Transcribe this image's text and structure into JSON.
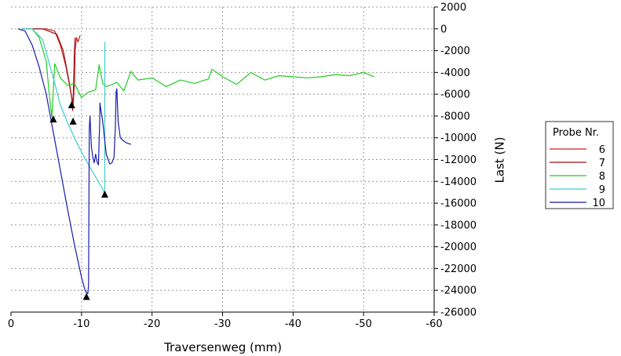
{
  "chart_data": {
    "type": "line",
    "xlabel": "Traversenweg (mm)",
    "ylabel": "Last (N)",
    "xlim": [
      0,
      -60
    ],
    "ylim": [
      -26000,
      2000
    ],
    "xticks": [
      0,
      -10,
      -20,
      -30,
      -40,
      -50,
      -60
    ],
    "yticks": [
      2000,
      0,
      -2000,
      -4000,
      -6000,
      -8000,
      -10000,
      -12000,
      -14000,
      -16000,
      -18000,
      -20000,
      -22000,
      -24000,
      -26000
    ],
    "xtick_labels": [
      "0",
      "-10",
      "-20",
      "-30",
      "-40",
      "-50",
      "-60"
    ],
    "ytick_labels": [
      "2000",
      "0",
      "-2000",
      "-4000",
      "-6000",
      "-8000",
      "-10000",
      "-12000",
      "-14000",
      "-16000",
      "-18000",
      "-20000",
      "-22000",
      "-24000",
      "-26000"
    ],
    "grid": true,
    "y_axis_side": "right",
    "legend": {
      "title": "Probe Nr.",
      "position": "right"
    },
    "series": [
      {
        "name": "6",
        "color": "#cc2020",
        "x": [
          -1.5,
          -3,
          -5,
          -6.2,
          -7,
          -7.8,
          -8.4,
          -8.8,
          -9.0,
          -9.1,
          -9.3,
          -9.5,
          -9.8
        ],
        "y": [
          0,
          0,
          0,
          -200,
          -1500,
          -3500,
          -5500,
          -7000,
          -5000,
          -2000,
          -800,
          -1200,
          -600
        ]
      },
      {
        "name": "7",
        "color": "#991010",
        "x": [
          -1.5,
          -4.5,
          -6.5,
          -7.4,
          -8.0,
          -8.4,
          -8.6,
          -8.75,
          -8.9,
          -9.0,
          -9.1
        ],
        "y": [
          0,
          0,
          -500,
          -2000,
          -4000,
          -5500,
          -6300,
          -7500,
          -4500,
          -2000,
          -800
        ]
      },
      {
        "name": "8",
        "color": "#22cc22",
        "x": [
          -1.5,
          -3,
          -4.0,
          -5.0,
          -5.5,
          -5.8,
          -6.2,
          -7,
          -8,
          -9,
          -10,
          -11,
          -12,
          -12.5,
          -13,
          -13.5,
          -14,
          -15,
          -16,
          -17,
          -18,
          -20,
          -22,
          -24,
          -26,
          -28,
          -28.5,
          -30,
          -32,
          -34,
          -36,
          -38,
          -40,
          -42,
          -44,
          -46,
          -48,
          -50,
          -51.5
        ],
        "y": [
          0,
          0,
          -800,
          -3000,
          -6500,
          -8100,
          -3200,
          -4500,
          -5200,
          -5000,
          -6300,
          -5800,
          -5600,
          -3300,
          -5000,
          -5300,
          -5200,
          -4900,
          -5700,
          -3900,
          -4700,
          -4500,
          -5300,
          -4700,
          -5000,
          -4600,
          -3700,
          -4400,
          -5100,
          -4000,
          -4700,
          -4300,
          -4400,
          -4500,
          -4400,
          -4200,
          -4300,
          -4000,
          -4400
        ]
      },
      {
        "name": "9",
        "color": "#40cccc",
        "x": [
          -1.5,
          -3,
          -4.5,
          -6,
          -7,
          -8,
          -9,
          -10,
          -11,
          -12,
          -13.0,
          -13.3,
          -13.3
        ],
        "y": [
          0,
          0,
          -1000,
          -4500,
          -7000,
          -8600,
          -10000,
          -11300,
          -12500,
          -13600,
          -14700,
          -15200,
          -1200
        ]
      },
      {
        "name": "10",
        "color": "#1a1aaa",
        "x": [
          -1.0,
          -2.0,
          -3.0,
          -4.0,
          -5.0,
          -6.0,
          -7.0,
          -8.0,
          -9.0,
          -10.0,
          -10.5,
          -10.7,
          -10.9,
          -11.0,
          -11.1,
          -11.2,
          -11.4,
          -11.6,
          -11.8,
          -12.0,
          -12.2,
          -12.4,
          -12.6,
          -12.6,
          -13.0,
          -13.5,
          -14.0,
          -14.3,
          -14.6,
          -14.8,
          -14.9,
          -15.0,
          -15.2,
          -15.5,
          -16.0,
          -16.5,
          -17.0
        ],
        "y": [
          0,
          -200,
          -1500,
          -3500,
          -6000,
          -9500,
          -13000,
          -16500,
          -19800,
          -22800,
          -24000,
          -24200,
          -24300,
          -23500,
          -9200,
          -8000,
          -10800,
          -11800,
          -12300,
          -11500,
          -12200,
          -12500,
          -8000,
          -6800,
          -8500,
          -11500,
          -12400,
          -12300,
          -11800,
          -9000,
          -5800,
          -5500,
          -8500,
          -10000,
          -10300,
          -10500,
          -10600
        ]
      }
    ],
    "failure_markers": [
      {
        "x": -6.0,
        "y": -8300
      },
      {
        "x": -8.6,
        "y": -7000
      },
      {
        "x": -8.8,
        "y": -8500
      },
      {
        "x": -13.3,
        "y": -15200
      },
      {
        "x": -10.7,
        "y": -24600
      }
    ]
  }
}
